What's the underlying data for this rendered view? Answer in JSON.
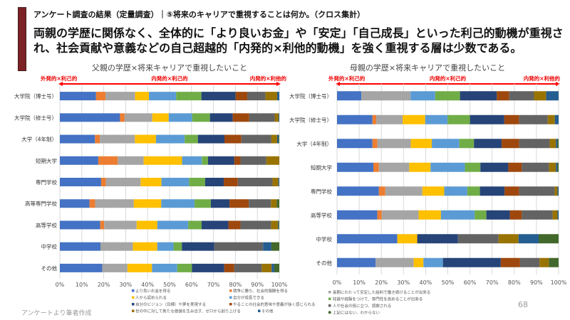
{
  "header": {
    "subtitle": "アンケート調査の結果（定量調査）｜⑤将来のキャリアで重視することは何か。（クロス集計）",
    "headline_line1": "両親の学歴に関係なく、全体的に「より良いお金」や「安定」「自己成長」といった利己的動機が重視さ",
    "headline_line2": "れ、社会貢献や意義などの自己超越的「内発的×利他的動機」を強く重視する層は少数である。",
    "accent_color": "#7B2226"
  },
  "footer": {
    "source": "アンケートより筆者作成",
    "page_number": "68"
  },
  "arrow_labels": {
    "left": "外発的×利己的",
    "center": "内発的×利己的",
    "right": "内発的×利他的"
  },
  "chart_data": [
    {
      "type": "bar",
      "stacked": "100%",
      "orientation": "horizontal",
      "title": "父親の学歴×将来キャリアで重視したいこと",
      "xlim": [
        0,
        100
      ],
      "xticks": [
        "0%",
        "10%",
        "20%",
        "30%",
        "40%",
        "50%",
        "60%",
        "70%",
        "80%",
        "90%",
        "100%"
      ],
      "categories": [
        "大学院（博士号）",
        "大学院（修士号）",
        "大学（4年制）",
        "短期大学",
        "専門学校",
        "高等専門学校",
        "高等学校",
        "中学校",
        "その他"
      ],
      "series": [
        {
          "name": "より良いお金を得る",
          "color": "#4472C4",
          "values": [
            16.5,
            27.4,
            16,
            17.5,
            18.8,
            13.5,
            18.4,
            18.5,
            19.3
          ]
        },
        {
          "name": "競争に勝ち、社会的報酬を得る",
          "color": "#ED7D31",
          "values": [
            4.3,
            2.1,
            2.2,
            8.9,
            2.2,
            2.6,
            1.8,
            0,
            0
          ]
        },
        {
          "name": "長期にわたって安定した給料で働き続けることが出来る",
          "color": "#A5A5A5",
          "values": [
            13.5,
            12.6,
            16,
            11.8,
            15.8,
            17.6,
            14.8,
            14.8,
            11.5
          ]
        },
        {
          "name": "人から認められる",
          "color": "#FFC000",
          "values": [
            6.3,
            7.5,
            9.6,
            17.5,
            9.5,
            12.5,
            9.4,
            11.1,
            11.2
          ]
        },
        {
          "name": "自分が成長できる",
          "color": "#5B9BD5",
          "values": [
            12.4,
            10.7,
            13.1,
            9,
            12.6,
            15.2,
            14.1,
            7.4,
            11.5
          ]
        },
        {
          "name": "知識や経験をつけて、専門性を高めることが出来る",
          "color": "#70AD47",
          "values": [
            11.5,
            8.1,
            6,
            2.8,
            7.3,
            7.4,
            6.1,
            3.8,
            6.7
          ]
        },
        {
          "name": "自分のビジョン（目標）や夢を実現する",
          "color": "#264478",
          "values": [
            15.6,
            10.4,
            12.1,
            12,
            8.5,
            8.5,
            12.2,
            14.8,
            14.7
          ]
        },
        {
          "name": "やることの社会的意味や意義が強く感じられる",
          "color": "#9E480E",
          "values": [
            5.3,
            7.5,
            7.7,
            2.8,
            6.4,
            8.8,
            5.5,
            0,
            4.6
          ]
        },
        {
          "name": "人や社会の役に立つ、感謝される",
          "color": "#636363",
          "values": [
            8.3,
            11.6,
            13.7,
            11.8,
            15.8,
            10.1,
            14,
            22.2,
            12.5
          ]
        },
        {
          "name": "世の中に対して新たな価値を生み出す、ゼロから創り上げる",
          "color": "#997300",
          "values": [
            5.3,
            1.8,
            2.6,
            5.9,
            2.7,
            2.6,
            3.1,
            0,
            4.5
          ]
        },
        {
          "name": "その他",
          "color": "#255E91",
          "values": [
            1,
            0.3,
            0.7,
            0,
            0.4,
            0,
            0.3,
            3.8,
            1.2
          ]
        },
        {
          "name": "上記にはない、わからない",
          "color": "#43682B",
          "values": [
            0,
            0,
            0.3,
            0,
            0,
            1.2,
            0.3,
            3.6,
            2.3
          ]
        }
      ]
    },
    {
      "type": "bar",
      "stacked": "100%",
      "orientation": "horizontal",
      "title": "母親の学歴×将来キャリアで重視したいこと",
      "xlim": [
        0,
        100
      ],
      "xticks": [
        "0%",
        "10%",
        "20%",
        "30%",
        "40%",
        "50%",
        "60%",
        "70%",
        "80%",
        "90%",
        "100%"
      ],
      "categories": [
        "大学院（博士号）",
        "大学院（修士号）",
        "大学（4年制）",
        "短期大学",
        "専門学校",
        "高等学校",
        "中学校",
        "その他"
      ],
      "series": [
        {
          "name": "より良いお金を得る",
          "color": "#4472C4",
          "values": [
            11,
            16,
            16,
            16.4,
            18.9,
            18.2,
            27.2,
            17.4
          ]
        },
        {
          "name": "競争に勝ち、社会的報酬を得る",
          "color": "#ED7D31",
          "values": [
            0,
            1.7,
            2.2,
            2.5,
            2.9,
            2,
            0,
            0
          ]
        },
        {
          "name": "長期にわたって安定した給料で働き続けることが出来る",
          "color": "#A5A5A5",
          "values": [
            22.2,
            11.9,
            15.1,
            13.7,
            16.7,
            16.6,
            0,
            17.2
          ]
        },
        {
          "name": "人から認められる",
          "color": "#FFC000",
          "values": [
            0,
            10.2,
            9.5,
            9.6,
            9.9,
            10.1,
            9,
            4.4
          ]
        },
        {
          "name": "自分が成長できる",
          "color": "#5B9BD5",
          "values": [
            11.1,
            10.1,
            12.4,
            15.5,
            10.4,
            15.2,
            0,
            8.8
          ]
        },
        {
          "name": "知識や経験をつけて、専門性を高めることが出来る",
          "color": "#70AD47",
          "values": [
            11.2,
            10.1,
            6.6,
            7,
            5.7,
            5.3,
            0,
            0
          ]
        },
        {
          "name": "自分のビジョン（目標）や夢を実現する",
          "color": "#264478",
          "values": [
            16.6,
            15.5,
            12.5,
            12.6,
            11.1,
            10.6,
            18.4,
            26.1
          ]
        },
        {
          "name": "やることの社会的意味や意義が強く感じられる",
          "color": "#9E480E",
          "values": [
            5.6,
            6.7,
            7.9,
            6.1,
            6.6,
            5.4,
            0,
            8.7
          ]
        },
        {
          "name": "人や社会の役に立つ、感謝される",
          "color": "#636363",
          "values": [
            11.2,
            12.9,
            13.8,
            12.3,
            16,
            13.9,
            18.3,
            8.8
          ]
        },
        {
          "name": "世の中に対して新たな価値を生み出す、ゼロから創り上げる",
          "color": "#997300",
          "values": [
            5.5,
            3.2,
            2.8,
            3.1,
            1.3,
            2.2,
            9,
            4.2
          ]
        },
        {
          "name": "その他",
          "color": "#255E91",
          "values": [
            5.6,
            1.7,
            0.7,
            0.7,
            0.5,
            0.5,
            9.1,
            0
          ]
        },
        {
          "name": "上記にはない、わからない",
          "color": "#43682B",
          "values": [
            0,
            0,
            0.5,
            0.5,
            0,
            0,
            9,
            4.4
          ]
        }
      ]
    }
  ],
  "legend": {
    "left_items": [
      0,
      1,
      3,
      4,
      6,
      7,
      9,
      10
    ],
    "right_items": [
      2,
      5,
      8,
      11
    ]
  }
}
